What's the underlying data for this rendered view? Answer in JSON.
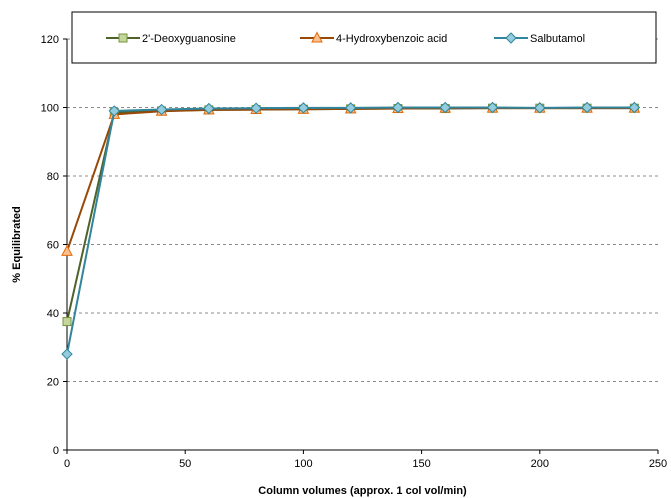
{
  "chart_data": {
    "type": "line",
    "title": "",
    "xlabel": "Column volumes (approx. 1 col vol/min)",
    "ylabel": "% Equilibrated",
    "xlim": [
      0,
      250
    ],
    "ylim": [
      0,
      120
    ],
    "x_ticks": [
      0,
      50,
      100,
      150,
      200,
      250
    ],
    "y_ticks": [
      0,
      20,
      40,
      60,
      80,
      100,
      120
    ],
    "grid": "horizontal dashed",
    "legend_position": "top",
    "x": [
      0,
      20,
      40,
      60,
      80,
      100,
      120,
      140,
      160,
      180,
      200,
      220,
      240
    ],
    "series": [
      {
        "name": "2'-Deoxyguanosine",
        "marker": "square",
        "line_color": "#4f6228",
        "marker_fill": "#c3d69b",
        "marker_stroke": "#77933c",
        "values": [
          37.5,
          98.5,
          99.0,
          99.3,
          99.4,
          99.5,
          99.6,
          99.7,
          99.7,
          99.8,
          99.8,
          99.8,
          99.8
        ]
      },
      {
        "name": "4-Hydroxybenzoic acid",
        "marker": "triangle",
        "line_color": "#984807",
        "marker_fill": "#fac090",
        "marker_stroke": "#e46c0a",
        "values": [
          58,
          98,
          98.9,
          99.3,
          99.4,
          99.5,
          99.6,
          99.7,
          99.8,
          99.8,
          99.8,
          99.8,
          99.8
        ]
      },
      {
        "name": "Salbutamol",
        "marker": "diamond",
        "line_color": "#31859c",
        "marker_fill": "#93cddd",
        "marker_stroke": "#31859c",
        "values": [
          28,
          99.0,
          99.4,
          99.7,
          99.8,
          99.9,
          99.9,
          100.0,
          100.0,
          100.0,
          99.9,
          100.0,
          100.0
        ]
      }
    ]
  }
}
